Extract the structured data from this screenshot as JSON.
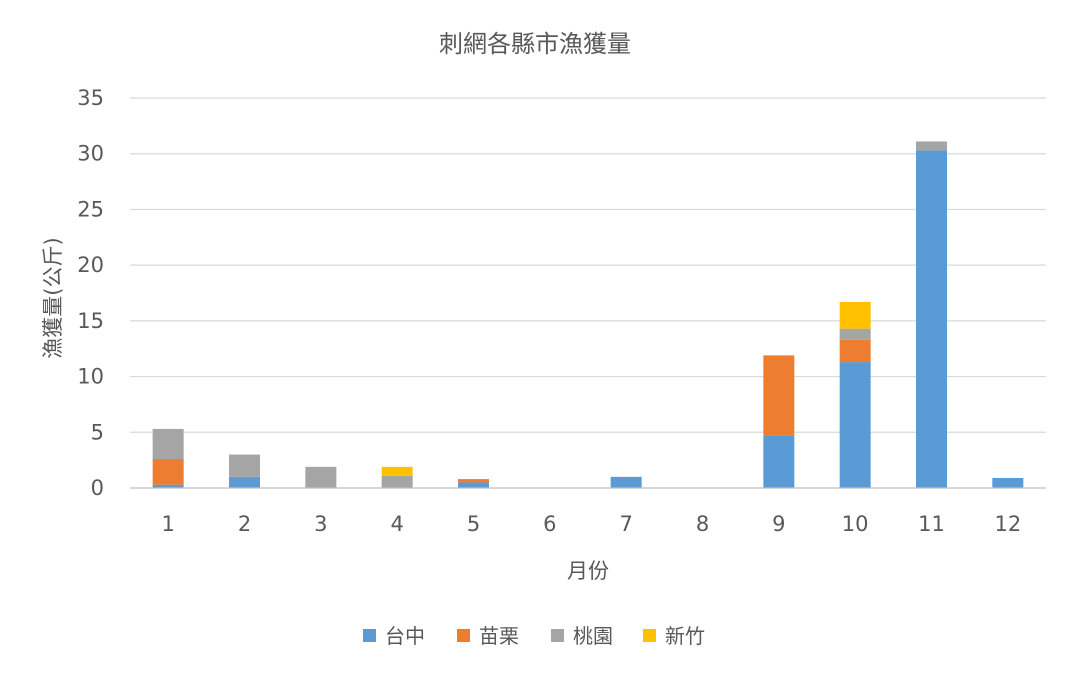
{
  "chart_data": {
    "type": "bar",
    "stacked": true,
    "title": "刺網各縣市漁獲量",
    "xlabel": "月份",
    "ylabel": "漁獲量(公斤)",
    "ylim": [
      0,
      35
    ],
    "yticks": [
      0,
      5,
      10,
      15,
      20,
      25,
      30,
      35
    ],
    "grid": true,
    "legend_position": "bottom",
    "categories": [
      "1",
      "2",
      "3",
      "4",
      "5",
      "6",
      "7",
      "8",
      "9",
      "10",
      "11",
      "12"
    ],
    "series": [
      {
        "name": "台中",
        "color": "#5b9bd5",
        "values": [
          0.3,
          1.0,
          0,
          0,
          0.5,
          0,
          1.0,
          0,
          4.7,
          11.3,
          30.3,
          0.9
        ]
      },
      {
        "name": "苗栗",
        "color": "#ed7d31",
        "values": [
          2.3,
          0,
          0,
          0,
          0.3,
          0,
          0,
          0,
          7.2,
          2.0,
          0,
          0
        ]
      },
      {
        "name": "桃園",
        "color": "#a5a5a5",
        "values": [
          2.7,
          2.0,
          1.9,
          1.1,
          0,
          0,
          0,
          0,
          0,
          1.0,
          0.8,
          0
        ]
      },
      {
        "name": "新竹",
        "color": "#ffc000",
        "values": [
          0,
          0,
          0,
          0.8,
          0,
          0,
          0,
          0,
          0,
          2.4,
          0,
          0
        ]
      }
    ]
  }
}
